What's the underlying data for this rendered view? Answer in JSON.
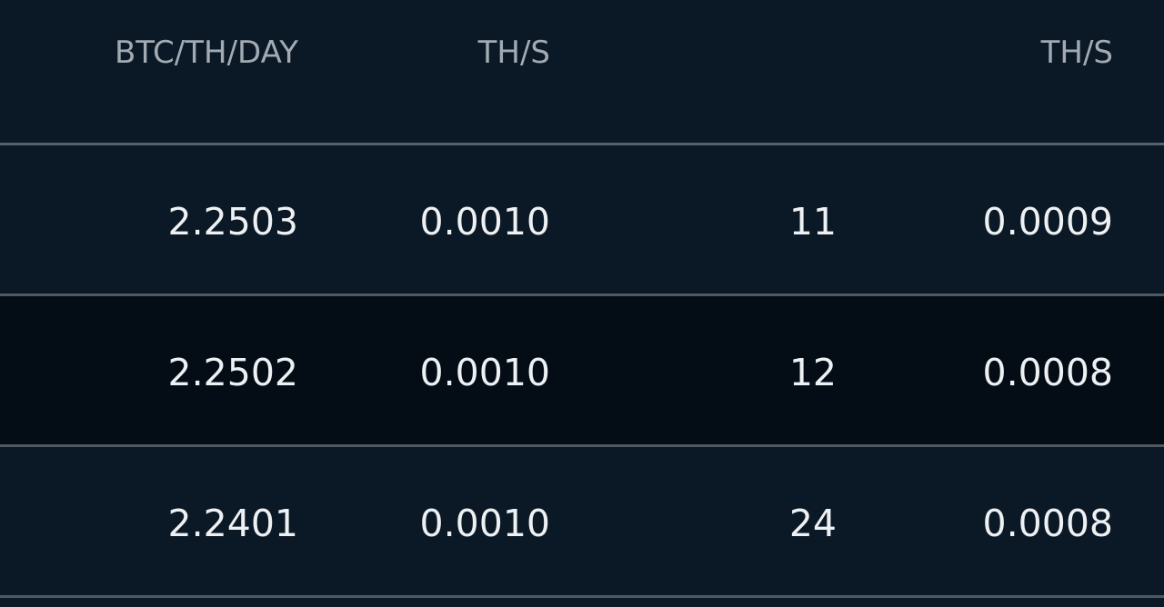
{
  "table": {
    "headers": [
      "BTC/TH/DAY",
      "TH/S",
      "",
      "TH/S"
    ],
    "rows": [
      [
        "2.2503",
        "0.0010",
        "11",
        "0.0009"
      ],
      [
        "2.2502",
        "0.0010",
        "12",
        "0.0008"
      ],
      [
        "2.2401",
        "0.0010",
        "24",
        "0.0008"
      ]
    ],
    "hovered_row": 1
  },
  "colors": {
    "background": "#0b1826",
    "hover_row": "#040d15",
    "divider": "#4e5963",
    "header_text": "#a2abb3",
    "cell_text": "#eef1f3"
  }
}
